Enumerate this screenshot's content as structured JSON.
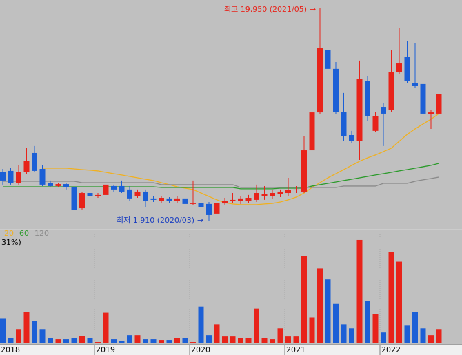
{
  "chart_data": {
    "type": "candlestick",
    "categories": [
      "2018",
      null,
      null,
      null,
      null,
      null,
      null,
      null,
      null,
      null,
      null,
      null,
      "2019",
      null,
      null,
      null,
      null,
      null,
      null,
      null,
      null,
      null,
      null,
      null,
      "2020",
      null,
      null,
      null,
      null,
      null,
      null,
      null,
      null,
      null,
      null,
      null,
      "2021",
      null,
      null,
      null,
      null,
      null,
      null,
      null,
      null,
      null,
      null,
      null,
      "2022",
      null,
      null,
      null,
      null,
      null,
      null,
      null
    ],
    "ylim": [
      1030,
      20650
    ],
    "up_color": "#e8231a",
    "down_color": "#1b5fd6",
    "open": [
      6010,
      6130,
      5130,
      6010,
      7650,
      6300,
      5130,
      4840,
      5010,
      4720,
      2960,
      4250,
      3960,
      4080,
      4840,
      4840,
      4550,
      3960,
      4370,
      3790,
      3550,
      3790,
      3550,
      3790,
      3320,
      3430,
      3320,
      2500,
      3370,
      3550,
      3550,
      3550,
      3670,
      3960,
      3960,
      4140,
      4250,
      4490,
      4370,
      7880,
      11100,
      16430,
      14800,
      11160,
      9170,
      8650,
      13740,
      9530,
      11570,
      11280,
      14500,
      15790,
      13620,
      13510,
      10930,
      10990
    ],
    "high": [
      6300,
      6360,
      6600,
      8060,
      8240,
      6600,
      5310,
      5130,
      5130,
      5130,
      4370,
      4370,
      4250,
      6710,
      4960,
      5310,
      4840,
      4550,
      4550,
      3960,
      4020,
      3900,
      3960,
      3960,
      5310,
      3670,
      3490,
      3670,
      3840,
      4250,
      4020,
      4080,
      4960,
      4840,
      4550,
      4550,
      5540,
      4840,
      9060,
      13620,
      19950,
      19480,
      15380,
      12750,
      9530,
      15500,
      14210,
      11100,
      11870,
      16430,
      18310,
      17140,
      17020,
      13740,
      11280,
      14500
    ],
    "low": [
      4960,
      4960,
      4960,
      5890,
      6010,
      4840,
      4720,
      4720,
      4550,
      2610,
      2850,
      3840,
      3840,
      3900,
      4370,
      4250,
      3550,
      3840,
      3080,
      3490,
      3430,
      3430,
      3430,
      3200,
      3200,
      2900,
      1910,
      2320,
      3260,
      3370,
      3320,
      3370,
      3490,
      3670,
      3730,
      3900,
      4020,
      4250,
      4250,
      7770,
      10990,
      14210,
      10990,
      8650,
      8470,
      7060,
      10400,
      9410,
      8240,
      11160,
      14330,
      13620,
      13160,
      9820,
      9700,
      10580
    ],
    "close": [
      5310,
      5130,
      6010,
      7000,
      6130,
      4960,
      4840,
      5010,
      4720,
      2790,
      4250,
      3960,
      4080,
      4960,
      4550,
      4370,
      3790,
      4370,
      3550,
      3670,
      3840,
      3550,
      3790,
      3320,
      3430,
      3080,
      2380,
      3430,
      3550,
      3670,
      3790,
      3840,
      4250,
      4140,
      4250,
      4370,
      4490,
      4550,
      7880,
      11100,
      16550,
      14800,
      11160,
      9060,
      8650,
      13920,
      10810,
      10810,
      10990,
      14500,
      15260,
      13740,
      13330,
      10990,
      11100,
      12630
    ],
    "series": [
      {
        "name": "20",
        "color": "#f0b020",
        "values": [
          null,
          null,
          null,
          null,
          null,
          6360,
          6360,
          6360,
          6360,
          6300,
          6240,
          6190,
          6130,
          6010,
          5890,
          5780,
          5660,
          5540,
          5420,
          5310,
          5130,
          4960,
          4780,
          4660,
          4550,
          4250,
          3960,
          3670,
          3430,
          3320,
          3260,
          3260,
          3260,
          3320,
          3370,
          3490,
          3670,
          3900,
          4250,
          4720,
          5130,
          5540,
          5890,
          6240,
          6600,
          6950,
          7240,
          7480,
          7770,
          8060,
          8650,
          9230,
          9700,
          10110,
          10520,
          10990
        ]
      },
      {
        "name": "60",
        "color": "#2a9a2a",
        "values": [
          4780,
          4780,
          4780,
          4780,
          4780,
          4780,
          4780,
          4780,
          4780,
          4780,
          4780,
          4780,
          4780,
          4780,
          4780,
          4780,
          4780,
          4780,
          4780,
          4780,
          4720,
          4720,
          4720,
          4720,
          4720,
          4720,
          4720,
          4720,
          4720,
          4720,
          4610,
          4610,
          4610,
          4610,
          4610,
          4660,
          4660,
          4660,
          4660,
          4840,
          4960,
          5070,
          5190,
          5310,
          5420,
          5540,
          5660,
          5780,
          5890,
          6010,
          6130,
          6240,
          6360,
          6480,
          6600,
          6770
        ]
      },
      {
        "name": "120",
        "color": "#8a8a8a",
        "values": [
          5250,
          5250,
          5250,
          5250,
          5250,
          5250,
          5250,
          5250,
          5250,
          5250,
          5130,
          5130,
          5130,
          5130,
          5130,
          5130,
          5130,
          5130,
          5130,
          5130,
          4960,
          4960,
          4960,
          4960,
          4960,
          4960,
          4960,
          4960,
          4960,
          4960,
          4720,
          4720,
          4720,
          4720,
          4720,
          4720,
          4720,
          4720,
          4720,
          4720,
          4720,
          4720,
          4720,
          4840,
          4840,
          4840,
          4840,
          4840,
          5070,
          5070,
          5070,
          5070,
          5250,
          5370,
          5480,
          5600
        ]
      }
    ],
    "volume": [
      36,
      8,
      20,
      46,
      33,
      20,
      8,
      6,
      6,
      8,
      11,
      8,
      2,
      45,
      6,
      4,
      12,
      12,
      6,
      6,
      5,
      5,
      8,
      8,
      2,
      54,
      12,
      28,
      10,
      10,
      8,
      8,
      51,
      8,
      6,
      22,
      10,
      10,
      128,
      38,
      110,
      94,
      58,
      28,
      22,
      152,
      62,
      43,
      16,
      134,
      120,
      26,
      46,
      22,
      12,
      20
    ],
    "volume_lim": [
      0,
      155
    ],
    "volume_label": "31%)",
    "annotations": [
      {
        "text": "최고 19,950 (2021/05)",
        "color": "#e8231a"
      },
      {
        "text": "최저 1,910 (2020/03)",
        "color": "#1b3fc0"
      }
    ]
  }
}
